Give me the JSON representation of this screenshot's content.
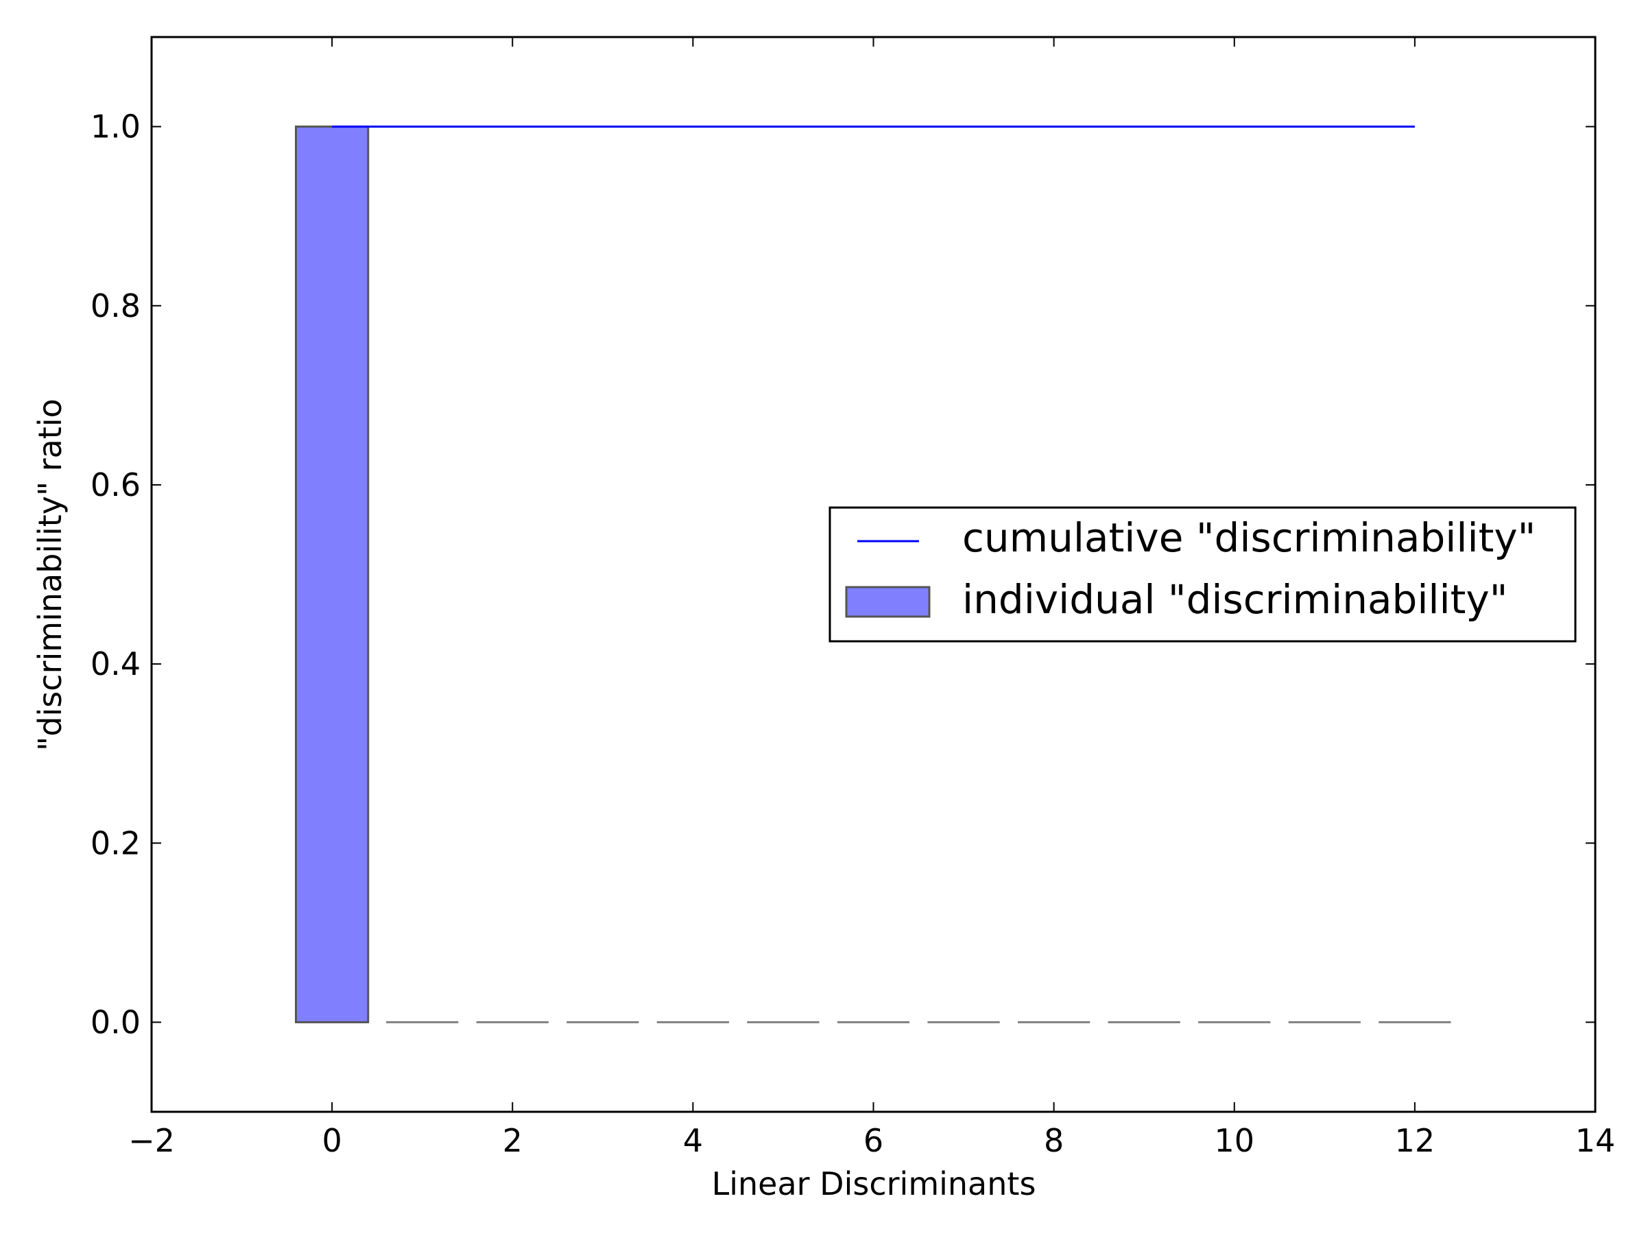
{
  "chart_data": {
    "type": "bar",
    "title": "",
    "xlabel": "Linear Discriminants",
    "ylabel": "\"discriminability\" ratio",
    "xlim": [
      -2,
      14
    ],
    "ylim": [
      -0.1,
      1.1
    ],
    "xticks": [
      -2,
      0,
      2,
      4,
      6,
      8,
      10,
      12,
      14
    ],
    "xtick_labels": [
      "−2",
      "0",
      "2",
      "4",
      "6",
      "8",
      "10",
      "12",
      "14"
    ],
    "yticks": [
      0.0,
      0.2,
      0.4,
      0.6,
      0.8,
      1.0
    ],
    "ytick_labels": [
      "0.0",
      "0.2",
      "0.4",
      "0.6",
      "0.8",
      "1.0"
    ],
    "grid": false,
    "legend_position": "center-right",
    "series": [
      {
        "name": "individual \"discriminability\"",
        "kind": "bar",
        "color": "#8080ff",
        "edge_color": "#555555",
        "x": [
          0,
          1,
          2,
          3,
          4,
          5,
          6,
          7,
          8,
          9,
          10,
          11,
          12
        ],
        "values": [
          1.0,
          0,
          0,
          0,
          0,
          0,
          0,
          0,
          0,
          0,
          0,
          0,
          0
        ]
      },
      {
        "name": "cumulative \"discriminability\"",
        "kind": "step-line",
        "color": "#0000ff",
        "x": [
          0,
          1,
          2,
          3,
          4,
          5,
          6,
          7,
          8,
          9,
          10,
          11,
          12
        ],
        "values": [
          1.0,
          1.0,
          1.0,
          1.0,
          1.0,
          1.0,
          1.0,
          1.0,
          1.0,
          1.0,
          1.0,
          1.0,
          1.0
        ]
      }
    ]
  }
}
